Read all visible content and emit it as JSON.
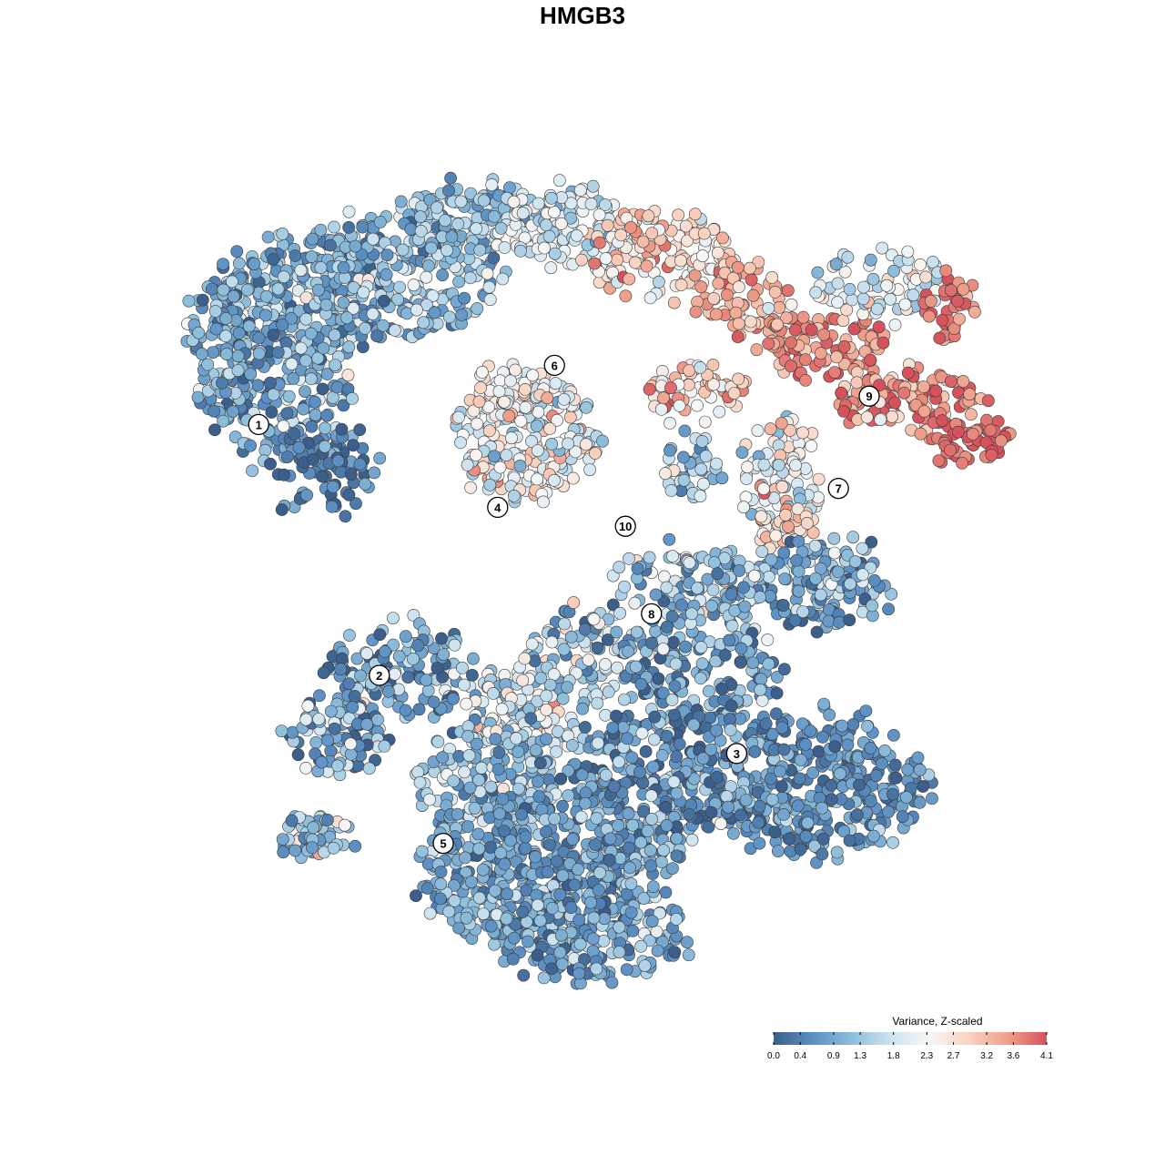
{
  "chart_data": {
    "type": "scatter",
    "title": "HMGB3",
    "legend": {
      "title": "Variance, Z-scaled",
      "placement": "bottom-right",
      "ticks": [
        0.0,
        0.4,
        0.9,
        1.3,
        1.8,
        2.3,
        2.7,
        3.2,
        3.6,
        4.1
      ],
      "tick_labels": [
        "0.0",
        "0.4",
        "0.9",
        "1.3",
        "1.8",
        "2.3",
        "2.7",
        "3.2",
        "3.6",
        "4.1"
      ],
      "range": [
        0.0,
        4.1
      ],
      "colors": [
        "#3b5f8a",
        "#5b8fc3",
        "#8ebedb",
        "#cde3f0",
        "#f7f7f7",
        "#f9d4c1",
        "#ef9f8a",
        "#d5525c"
      ]
    },
    "axes": {
      "visible": false,
      "grid": false
    },
    "clusters": [
      {
        "label": "1",
        "x": -8.3,
        "y": 8.6,
        "mean_value": 1.0
      },
      {
        "label": "2",
        "x": -3.2,
        "y": -2.0,
        "mean_value": 1.1
      },
      {
        "label": "3",
        "x": 11.9,
        "y": -5.3,
        "mean_value": 0.6
      },
      {
        "label": "4",
        "x": 1.8,
        "y": 5.1,
        "mean_value": 2.4
      },
      {
        "label": "5",
        "x": -0.5,
        "y": -9.1,
        "mean_value": 0.8
      },
      {
        "label": "6",
        "x": 4.2,
        "y": 11.1,
        "mean_value": 2.2
      },
      {
        "label": "7",
        "x": 16.2,
        "y": 5.9,
        "mean_value": 3.6
      },
      {
        "label": "8",
        "x": 8.3,
        "y": 0.6,
        "mean_value": 1.0
      },
      {
        "label": "9",
        "x": 17.5,
        "y": 9.8,
        "mean_value": 2.6
      },
      {
        "label": "10",
        "x": 7.2,
        "y": 4.3,
        "mean_value": 1.5
      }
    ]
  }
}
